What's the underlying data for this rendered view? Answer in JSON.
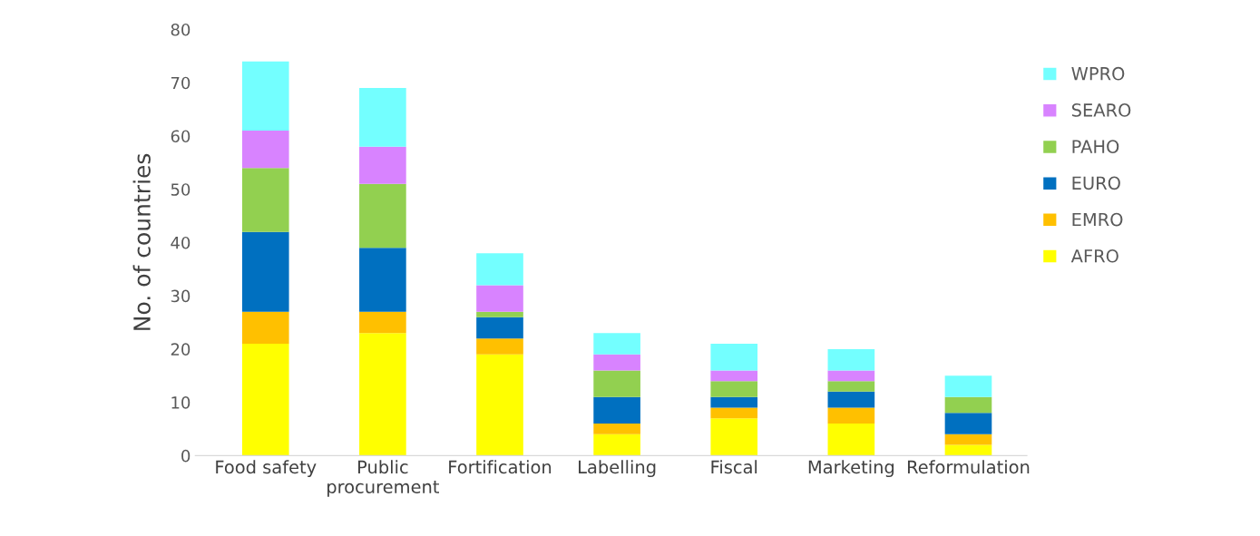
{
  "chart_data": {
    "type": "bar",
    "stacked": true,
    "ylabel": "No. of countries",
    "categories": [
      "Food safety",
      "Public\nprocurement",
      "Fortification",
      "Labelling",
      "Fiscal",
      "Marketing",
      "Reformulation"
    ],
    "series": [
      {
        "name": "AFRO",
        "color": "#ffff00",
        "values": [
          21,
          23,
          19,
          4,
          7,
          6,
          2
        ]
      },
      {
        "name": "EMRO",
        "color": "#ffc000",
        "values": [
          6,
          4,
          3,
          2,
          2,
          3,
          2
        ]
      },
      {
        "name": "EURO",
        "color": "#0070c0",
        "values": [
          15,
          12,
          4,
          5,
          2,
          3,
          4
        ]
      },
      {
        "name": "PAHO",
        "color": "#92d050",
        "values": [
          12,
          12,
          1,
          5,
          3,
          2,
          3
        ]
      },
      {
        "name": "SEARO",
        "color": "#d883ff",
        "values": [
          7,
          7,
          5,
          3,
          2,
          2,
          0
        ]
      },
      {
        "name": "WPRO",
        "color": "#73ffff",
        "values": [
          13,
          11,
          6,
          4,
          5,
          4,
          4
        ]
      }
    ],
    "ylim": [
      0,
      80
    ],
    "yticks": [
      0,
      10,
      20,
      30,
      40,
      50,
      60,
      70,
      80
    ],
    "grid": false,
    "legend": "right"
  }
}
